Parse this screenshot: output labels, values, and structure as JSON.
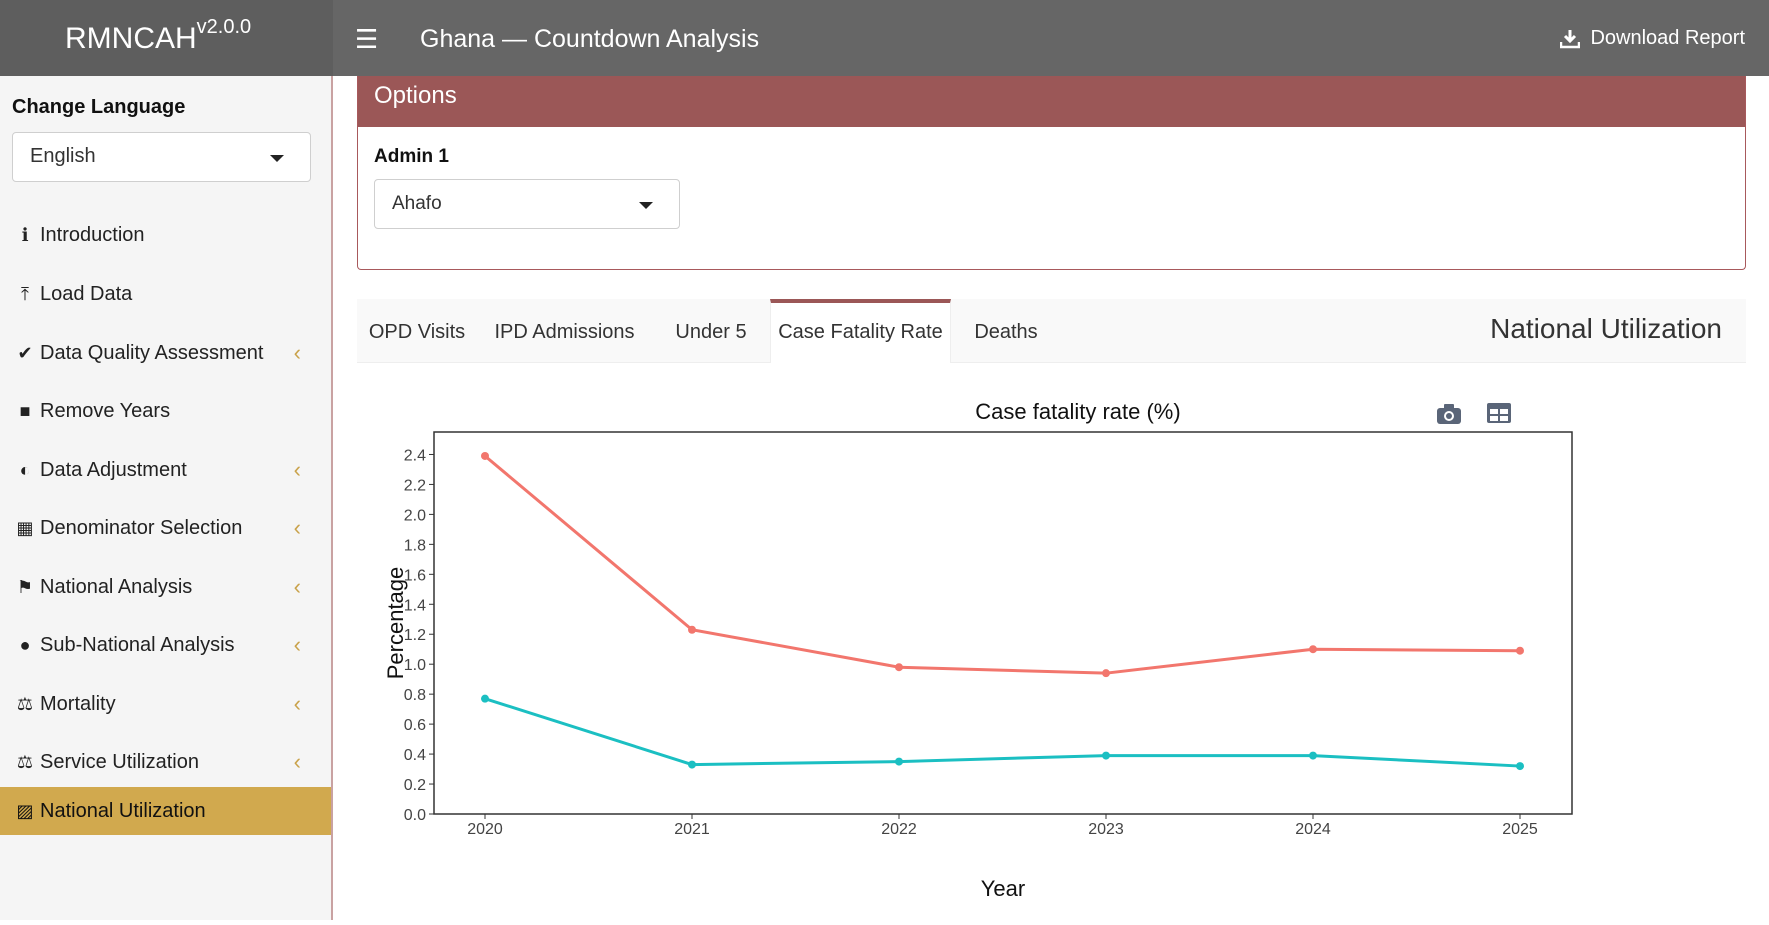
{
  "app": {
    "name": "RMNCAH",
    "version": "v2.0.0",
    "page_title": "Ghana — Countdown Analysis",
    "download_label": "Download Report"
  },
  "sidebar": {
    "language_label": "Change Language",
    "language_value": "English",
    "items": [
      {
        "label": "Introduction",
        "icon": "info-circle-icon",
        "glyph": "ℹ",
        "chevron": false,
        "active": false
      },
      {
        "label": "Load Data",
        "icon": "upload-icon",
        "glyph": "⤒",
        "chevron": false,
        "active": false
      },
      {
        "label": "Data Quality Assessment",
        "icon": "check-circle-icon",
        "glyph": "✔",
        "chevron": true,
        "active": false
      },
      {
        "label": "Remove Years",
        "icon": "trash-icon",
        "glyph": "■",
        "chevron": false,
        "active": false
      },
      {
        "label": "Data Adjustment",
        "icon": "adjust-icon",
        "glyph": "◐",
        "chevron": true,
        "active": false
      },
      {
        "label": "Denominator Selection",
        "icon": "calculator-icon",
        "glyph": "▦",
        "chevron": true,
        "active": false
      },
      {
        "label": "National Analysis",
        "icon": "flag-icon",
        "glyph": "⚑",
        "chevron": true,
        "active": false
      },
      {
        "label": "Sub-National Analysis",
        "icon": "globe-icon",
        "glyph": "●",
        "chevron": true,
        "active": false
      },
      {
        "label": "Mortality",
        "icon": "balance-scale-icon",
        "glyph": "⚖",
        "chevron": true,
        "active": false
      },
      {
        "label": "Service Utilization",
        "icon": "balance-scale-icon",
        "glyph": "⚖",
        "chevron": true,
        "active": false
      },
      {
        "label": "National Utilization",
        "icon": "map-icon",
        "glyph": "▨",
        "chevron": false,
        "active": true
      }
    ]
  },
  "options": {
    "header": "Options",
    "admin_label": "Admin 1",
    "admin_value": "Ahafo"
  },
  "tabs": {
    "items": [
      "OPD Visits",
      "IPD Admissions",
      "Under 5",
      "Case Fatality Rate",
      "Deaths"
    ],
    "active_index": 3,
    "section_title": "National Utilization"
  },
  "chart_data": {
    "type": "line",
    "title": "Case fatality rate (%)",
    "xlabel": "Year",
    "ylabel": "Percentage",
    "x": [
      2020,
      2021,
      2022,
      2023,
      2024,
      2025
    ],
    "ylim": [
      0,
      2.55
    ],
    "yticks": [
      "0.0",
      "0.2",
      "0.4",
      "0.6",
      "0.8",
      "1.0",
      "1.2",
      "1.4",
      "1.6",
      "1.8",
      "2.0",
      "2.2",
      "2.4"
    ],
    "series": [
      {
        "color": "#f2766d",
        "values": [
          2.39,
          1.23,
          0.98,
          0.94,
          1.1,
          1.09
        ]
      },
      {
        "color": "#1bbfc2",
        "values": [
          0.77,
          0.33,
          0.35,
          0.39,
          0.39,
          0.32
        ]
      }
    ],
    "grid": false
  }
}
